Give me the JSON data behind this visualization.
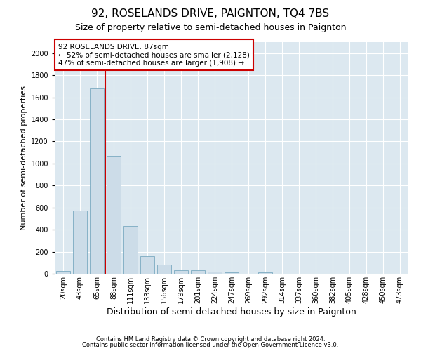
{
  "title": "92, ROSELANDS DRIVE, PAIGNTON, TQ4 7BS",
  "subtitle": "Size of property relative to semi-detached houses in Paignton",
  "xlabel": "Distribution of semi-detached houses by size in Paignton",
  "ylabel": "Number of semi-detached properties",
  "footer1": "Contains HM Land Registry data © Crown copyright and database right 2024.",
  "footer2": "Contains public sector information licensed under the Open Government Licence v3.0.",
  "categories": [
    "20sqm",
    "43sqm",
    "65sqm",
    "88sqm",
    "111sqm",
    "133sqm",
    "156sqm",
    "179sqm",
    "201sqm",
    "224sqm",
    "247sqm",
    "269sqm",
    "292sqm",
    "314sqm",
    "337sqm",
    "360sqm",
    "382sqm",
    "405sqm",
    "428sqm",
    "450sqm",
    "473sqm"
  ],
  "values": [
    25,
    570,
    1680,
    1070,
    430,
    160,
    80,
    35,
    30,
    20,
    10,
    0,
    15,
    0,
    0,
    0,
    0,
    0,
    0,
    0,
    0
  ],
  "bar_color": "#ccdce8",
  "bar_edge_color": "#7aaac0",
  "annotation_text": "92 ROSELANDS DRIVE: 87sqm",
  "annotation_line1": "← 52% of semi-detached houses are smaller (2,128)",
  "annotation_line2": "47% of semi-detached houses are larger (1,908) →",
  "annotation_box_color": "#ffffff",
  "annotation_box_edge": "#cc0000",
  "vline_color": "#cc0000",
  "vline_x_index": 2.5,
  "ylim": [
    0,
    2100
  ],
  "yticks": [
    0,
    200,
    400,
    600,
    800,
    1000,
    1200,
    1400,
    1600,
    1800,
    2000
  ],
  "bg_color": "#dce8f0",
  "grid_color": "#ffffff",
  "title_fontsize": 11,
  "subtitle_fontsize": 9,
  "tick_fontsize": 7,
  "ylabel_fontsize": 8,
  "xlabel_fontsize": 9,
  "footer_fontsize": 6
}
